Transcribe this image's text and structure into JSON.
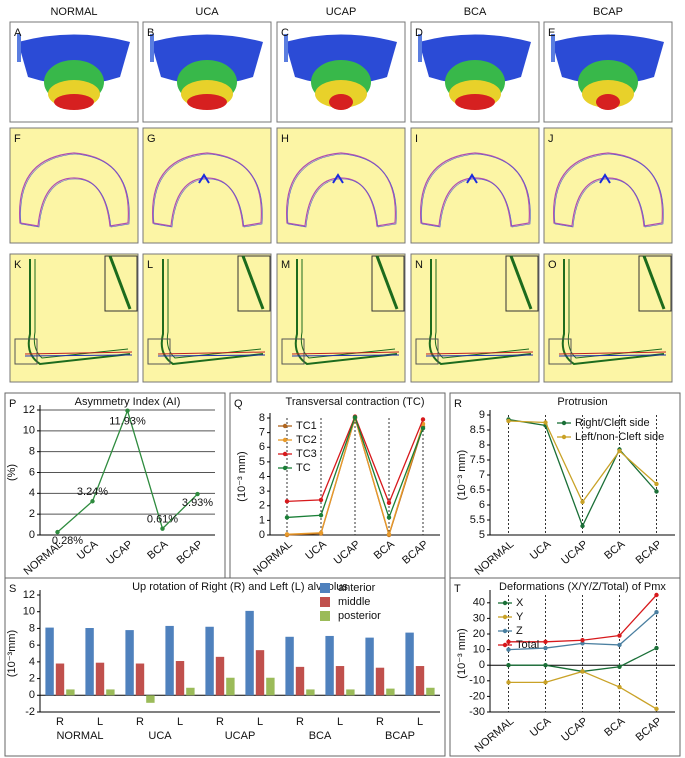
{
  "column_labels": [
    "NORMAL",
    "UCA",
    "UCAP",
    "BCA",
    "BCAP"
  ],
  "image_panels": [
    "A",
    "B",
    "C",
    "D",
    "E",
    "F",
    "G",
    "H",
    "I",
    "J",
    "K",
    "L",
    "M",
    "N",
    "O"
  ],
  "chart_data": [
    {
      "type": "line",
      "panel": "P",
      "title": "Asymmetry Index (AI)",
      "y_label": "(%)",
      "categories": [
        "NORMAL",
        "UCA",
        "UCAP",
        "BCA",
        "BCAP"
      ],
      "values": [
        0.28,
        3.24,
        11.93,
        0.61,
        3.93
      ],
      "value_labels": [
        "0.28%",
        "3.24%",
        "11.93%",
        "0.61%",
        "3.93%"
      ],
      "color": "#2e8b3e",
      "ylim": [
        0,
        12
      ],
      "yticks": [
        0,
        2,
        4,
        6,
        8,
        10,
        12
      ],
      "grid": true
    },
    {
      "type": "line",
      "panel": "Q",
      "title": "Transversal contraction (TC)",
      "y_label": "(10⁻³ mm)",
      "categories": [
        "NORMAL",
        "UCA",
        "UCAP",
        "BCA",
        "BCAP"
      ],
      "series": [
        {
          "name": "TC1",
          "color": "#b0651e",
          "values": [
            0,
            0.1,
            8,
            0,
            7.4
          ]
        },
        {
          "name": "TC2",
          "color": "#e89a2a",
          "values": [
            0.05,
            0.15,
            8,
            0.05,
            7.6
          ]
        },
        {
          "name": "TC3",
          "color": "#d7191c",
          "values": [
            2.3,
            2.4,
            8.1,
            2.2,
            7.9
          ]
        },
        {
          "name": "TC",
          "color": "#1a7f37",
          "values": [
            1.2,
            1.35,
            8.05,
            1.2,
            7.3
          ]
        }
      ],
      "ylim": [
        0,
        8
      ],
      "yticks": [
        0,
        1,
        2,
        3,
        4,
        5,
        6,
        7,
        8
      ],
      "legend": "upper left"
    },
    {
      "type": "line",
      "panel": "R",
      "title": "Protrusion",
      "y_label": "(10⁻³ mm)",
      "categories": [
        "NORMAL",
        "UCA",
        "UCAP",
        "BCA",
        "BCAP"
      ],
      "series": [
        {
          "name": "Right/Cleft side",
          "color": "#1a6f37",
          "values": [
            8.85,
            8.65,
            5.3,
            7.85,
            6.45
          ]
        },
        {
          "name": "Left/non-Cleft side",
          "color": "#c9a227",
          "values": [
            8.8,
            8.75,
            6.1,
            7.8,
            6.7
          ]
        }
      ],
      "ylim": [
        5,
        9
      ],
      "yticks": [
        5,
        5.5,
        6,
        6.5,
        7,
        7.5,
        8,
        8.5,
        9
      ],
      "legend": "upper right"
    },
    {
      "type": "grouped-bar",
      "panel": "S",
      "title": "Up rotation of Right (R) and Left (L) alveolus",
      "y_label": "(10⁻³mm)",
      "groups": [
        "NORMAL",
        "UCA",
        "UCAP",
        "BCA",
        "BCAP"
      ],
      "categories": [
        "R",
        "L",
        "R",
        "L",
        "R",
        "L",
        "R",
        "L",
        "R",
        "L"
      ],
      "series": [
        {
          "name": "anterior",
          "color": "#4f81bd",
          "values": [
            8.1,
            8.05,
            7.8,
            8.3,
            8.2,
            10.1,
            7.0,
            7.1,
            6.9,
            7.5
          ]
        },
        {
          "name": "middle",
          "color": "#c0504d",
          "values": [
            3.8,
            3.9,
            3.8,
            4.1,
            4.6,
            5.4,
            3.4,
            3.5,
            3.3,
            3.5
          ]
        },
        {
          "name": "posterior",
          "color": "#9bbb59",
          "values": [
            0.7,
            0.7,
            -0.9,
            0.9,
            2.1,
            2.1,
            0.7,
            0.7,
            0.8,
            0.9
          ]
        }
      ],
      "ylim": [
        -2,
        12
      ],
      "yticks": [
        -2,
        0,
        2,
        4,
        6,
        8,
        10,
        12
      ],
      "legend": "upper right"
    },
    {
      "type": "line",
      "panel": "T",
      "title": "Deformations (X/Y/Z/Total) of Pmx",
      "y_label": "(10⁻³ mm)",
      "categories": [
        "NORMAL",
        "UCA",
        "UCAP",
        "BCA",
        "BCAP"
      ],
      "series": [
        {
          "name": "X",
          "color": "#1a6f37",
          "values": [
            0,
            0,
            -4,
            -1,
            11
          ]
        },
        {
          "name": "Y",
          "color": "#c9a227",
          "values": [
            -11,
            -11,
            -4,
            -14,
            -28
          ]
        },
        {
          "name": "Z",
          "color": "#4a7fa0",
          "values": [
            10,
            11,
            14,
            13,
            34
          ]
        },
        {
          "name": "Total",
          "color": "#d7191c",
          "values": [
            15,
            15,
            16,
            19,
            45
          ]
        }
      ],
      "ylim": [
        -30,
        45
      ],
      "yticks": [
        -30,
        -20,
        -10,
        0,
        10,
        20,
        30,
        40
      ],
      "legend": "upper left"
    }
  ]
}
